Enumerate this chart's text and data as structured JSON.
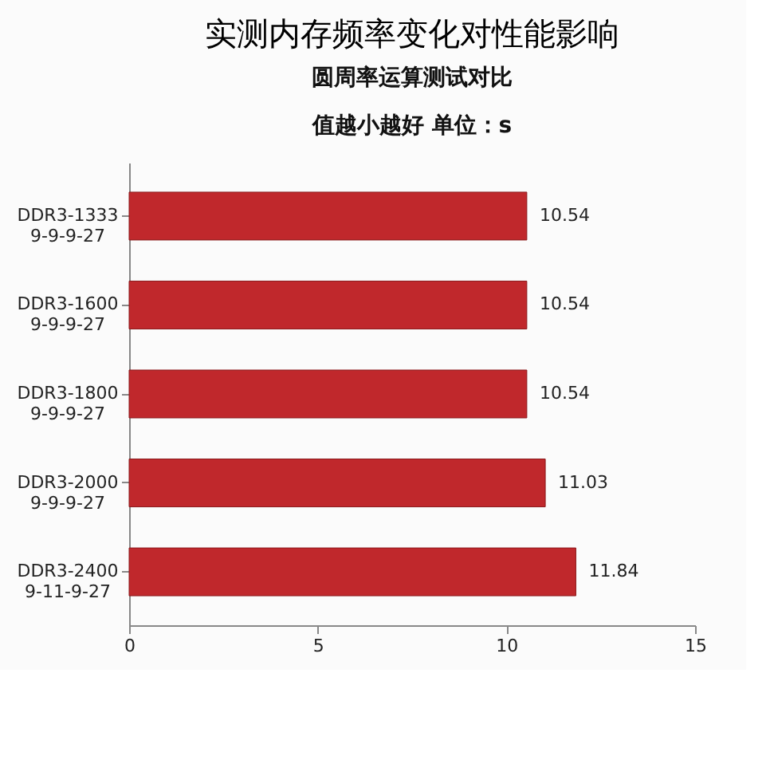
{
  "chart_data": {
    "type": "bar",
    "orientation": "horizontal",
    "title": "实测内存频率变化对性能影响",
    "subtitle": "圆周率运算测试对比",
    "annotations": [
      "值越小越好      单位：s"
    ],
    "categories": [
      "DDR3-1333\n9-9-9-27",
      "DDR3-1600\n9-9-9-27",
      "DDR3-1800\n9-9-9-27",
      "DDR3-2000\n9-9-9-27",
      "DDR3-2400\n9-11-9-27"
    ],
    "values": [
      10.54,
      10.54,
      10.54,
      11.03,
      11.84
    ],
    "color": "#c0282c",
    "xlim": [
      0,
      15
    ],
    "xticks": [
      0,
      5,
      10,
      15
    ],
    "grid": false,
    "data_labels": true
  }
}
